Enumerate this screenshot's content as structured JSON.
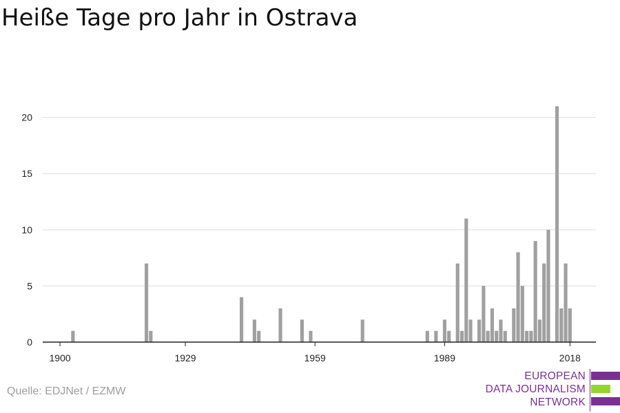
{
  "title": "Heiße Tage pro Jahr in Ostrava",
  "source": "Quelle: EDJNet / EZMW",
  "logo": {
    "lines": [
      "EUROPEAN",
      "DATA JOURNALISM",
      "NETWORK"
    ],
    "colors": {
      "purple": "#7a2f97",
      "green": "#95d62a"
    }
  },
  "colors": {
    "bar": "#a0a0a0",
    "grid": "#dddddd",
    "axis": "#222222",
    "text": "#222222"
  },
  "chart_data": {
    "type": "bar",
    "title": "Heiße Tage pro Jahr in Ostrava",
    "xlabel": "",
    "ylabel": "",
    "x_ticks": [
      "1900",
      "1929",
      "1959",
      "1989",
      "2018"
    ],
    "y_ticks": [
      0,
      5,
      10,
      15,
      20
    ],
    "ylim": [
      0,
      22
    ],
    "xlim": [
      1896,
      2024
    ],
    "grid": true,
    "x": [
      1903,
      1920,
      1921,
      1942,
      1945,
      1946,
      1951,
      1956,
      1958,
      1970,
      1985,
      1987,
      1989,
      1990,
      1992,
      1993,
      1994,
      1995,
      1997,
      1998,
      1999,
      2000,
      2001,
      2002,
      2003,
      2005,
      2006,
      2007,
      2008,
      2009,
      2010,
      2011,
      2012,
      2013,
      2015,
      2016,
      2017,
      2018
    ],
    "values": [
      1,
      7,
      1,
      4,
      2,
      1,
      3,
      2,
      1,
      2,
      1,
      1,
      2,
      1,
      7,
      1,
      11,
      2,
      2,
      5,
      1,
      3,
      1,
      2,
      1,
      3,
      8,
      5,
      1,
      1,
      9,
      2,
      7,
      10,
      21,
      3,
      7,
      3
    ]
  }
}
